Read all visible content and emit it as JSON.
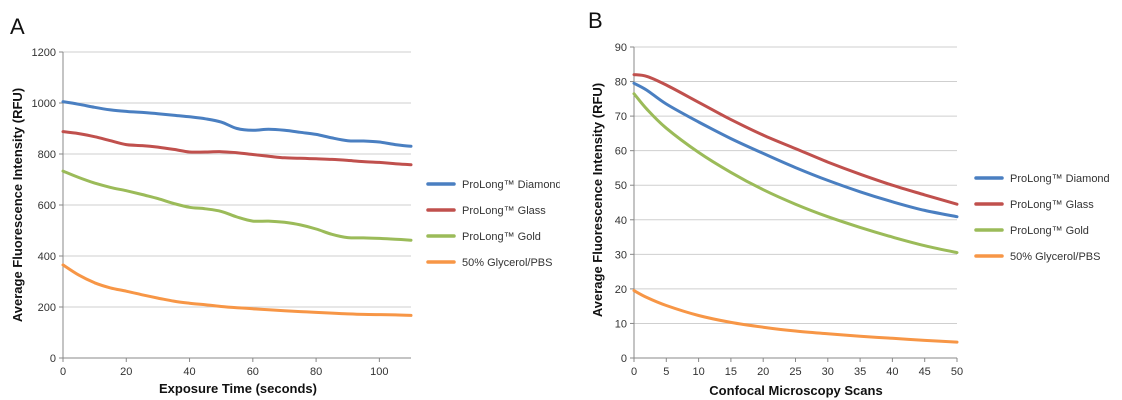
{
  "chart_data": [
    {
      "panel_label": "A",
      "type": "line",
      "title": "",
      "xlabel": "Exposure Time (seconds)",
      "ylabel": "Average Fluorescence Intensity (RFU)",
      "xlim": [
        0,
        110
      ],
      "ylim": [
        0,
        1200
      ],
      "xticks": [
        "0",
        "20",
        "40",
        "60",
        "80",
        "100"
      ],
      "yticks": [
        "0",
        "200",
        "400",
        "600",
        "800",
        "1000",
        "1200"
      ],
      "grid": true,
      "legend_position": "right",
      "series": [
        {
          "name": "ProLong™ Diamond",
          "color": "#4a7fc1",
          "x": [
            0,
            5,
            10,
            15,
            20,
            25,
            30,
            35,
            40,
            45,
            50,
            55,
            60,
            65,
            70,
            75,
            80,
            85,
            90,
            95,
            100,
            105,
            110
          ],
          "y": [
            1005,
            995,
            983,
            973,
            967,
            963,
            958,
            952,
            946,
            938,
            925,
            900,
            893,
            897,
            893,
            885,
            877,
            863,
            852,
            851,
            847,
            837,
            830
          ]
        },
        {
          "name": "ProLong™ Glass",
          "color": "#c0504d",
          "x": [
            0,
            5,
            10,
            15,
            20,
            25,
            30,
            35,
            40,
            45,
            50,
            55,
            60,
            65,
            70,
            75,
            80,
            85,
            90,
            95,
            100,
            105,
            110
          ],
          "y": [
            888,
            880,
            868,
            852,
            837,
            833,
            827,
            818,
            808,
            808,
            809,
            805,
            798,
            791,
            785,
            783,
            781,
            779,
            775,
            770,
            767,
            762,
            758
          ]
        },
        {
          "name": "ProLong™ Gold",
          "color": "#9bbb59",
          "x": [
            0,
            5,
            10,
            15,
            20,
            25,
            30,
            35,
            40,
            45,
            50,
            55,
            60,
            65,
            70,
            75,
            80,
            85,
            90,
            95,
            100,
            105,
            110
          ],
          "y": [
            733,
            708,
            686,
            669,
            656,
            641,
            625,
            606,
            591,
            585,
            575,
            553,
            537,
            537,
            532,
            522,
            506,
            485,
            472,
            471,
            469,
            466,
            462
          ]
        },
        {
          "name": "50% Glycerol/PBS",
          "color": "#f79646",
          "x": [
            0,
            5,
            10,
            15,
            20,
            25,
            30,
            35,
            40,
            45,
            50,
            55,
            60,
            65,
            70,
            75,
            80,
            85,
            90,
            95,
            100,
            105,
            110
          ],
          "y": [
            365,
            325,
            295,
            275,
            262,
            248,
            235,
            223,
            215,
            209,
            202,
            197,
            193,
            189,
            185,
            182,
            179,
            176,
            173,
            171,
            170,
            169,
            167
          ]
        }
      ]
    },
    {
      "panel_label": "B",
      "type": "line",
      "title": "",
      "xlabel": "Confocal Microscopy Scans",
      "ylabel": "Average Fluorescence Intensity (RFU)",
      "xlim": [
        0,
        50
      ],
      "ylim": [
        0,
        90
      ],
      "xticks": [
        "0",
        "5",
        "10",
        "15",
        "20",
        "25",
        "30",
        "35",
        "40",
        "45",
        "50"
      ],
      "yticks": [
        "0",
        "10",
        "20",
        "30",
        "40",
        "50",
        "60",
        "70",
        "80",
        "90"
      ],
      "grid": true,
      "legend_position": "right",
      "series": [
        {
          "name": "ProLong™ Diamond",
          "color": "#4a7fc1",
          "x": [
            0,
            2,
            5,
            10,
            15,
            20,
            25,
            30,
            35,
            40,
            45,
            50
          ],
          "y": [
            79.5,
            77.5,
            73.5,
            68.3,
            63.5,
            59.2,
            55.1,
            51.4,
            48.1,
            45.2,
            42.7,
            40.9
          ]
        },
        {
          "name": "ProLong™ Glass",
          "color": "#c0504d",
          "x": [
            0,
            2,
            5,
            10,
            15,
            20,
            25,
            30,
            35,
            40,
            45,
            50
          ],
          "y": [
            82,
            81.5,
            79,
            74,
            69,
            64.5,
            60.6,
            56.7,
            53.2,
            50,
            47.2,
            44.5
          ]
        },
        {
          "name": "ProLong™ Gold",
          "color": "#9bbb59",
          "x": [
            0,
            2,
            5,
            10,
            15,
            20,
            25,
            30,
            35,
            40,
            45,
            50
          ],
          "y": [
            76.5,
            72,
            66.5,
            59.5,
            53.7,
            48.7,
            44.5,
            40.9,
            37.8,
            35,
            32.5,
            30.5
          ]
        },
        {
          "name": "50% Glycerol/PBS",
          "color": "#f79646",
          "x": [
            0,
            2,
            5,
            10,
            15,
            20,
            25,
            30,
            35,
            40,
            45,
            50
          ],
          "y": [
            19.5,
            17.5,
            15.2,
            12.3,
            10.3,
            8.9,
            7.8,
            7.0,
            6.3,
            5.7,
            5.1,
            4.6
          ]
        }
      ]
    }
  ]
}
